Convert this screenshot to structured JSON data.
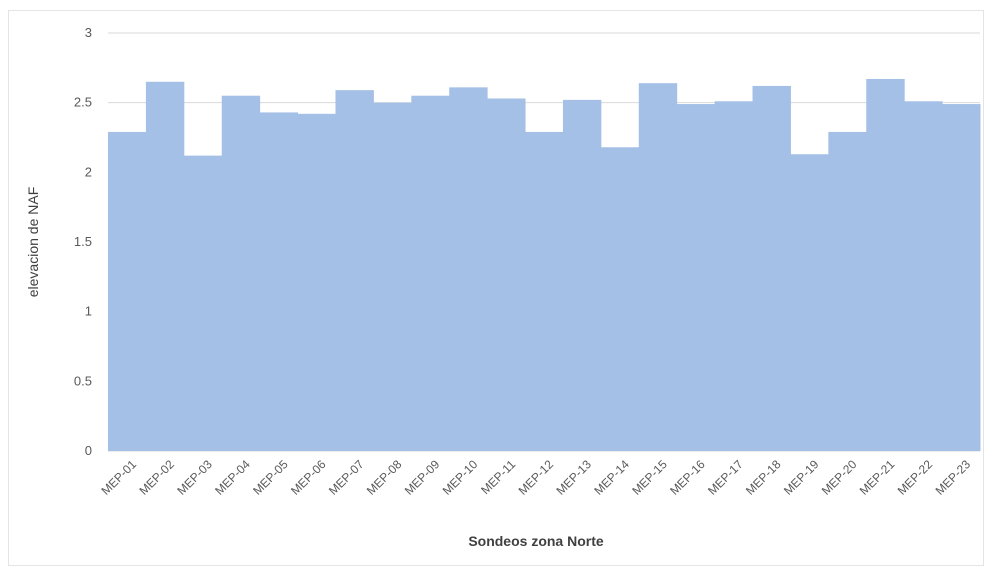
{
  "chart_data": {
    "type": "bar",
    "title": "",
    "xlabel": "Sondeos zona Norte",
    "ylabel": "elevacion de NAF",
    "ylim": [
      0,
      3
    ],
    "yticks": [
      0,
      0.5,
      1,
      1.5,
      2,
      2.5,
      3
    ],
    "grid": true,
    "legend": "none",
    "bar_color": "#a5c0e6",
    "categories": [
      "MEP-01",
      "MEP-02",
      "MEP-03",
      "MEP-04",
      "MEP-05",
      "MEP-06",
      "MEP-07",
      "MEP-08",
      "MEP-09",
      "MEP-10",
      "MEP-11",
      "MEP-12",
      "MEP-13",
      "MEP-14",
      "MEP-15",
      "MEP-16",
      "MEP-17",
      "MEP-18",
      "MEP-19",
      "MEP-20",
      "MEP-21",
      "MEP-22",
      "MEP-23"
    ],
    "values": [
      2.29,
      2.65,
      2.12,
      2.55,
      2.43,
      2.42,
      2.59,
      2.5,
      2.55,
      2.61,
      2.53,
      2.29,
      2.52,
      2.18,
      2.64,
      2.49,
      2.51,
      2.62,
      2.13,
      2.29,
      2.67,
      2.51,
      2.49
    ]
  }
}
